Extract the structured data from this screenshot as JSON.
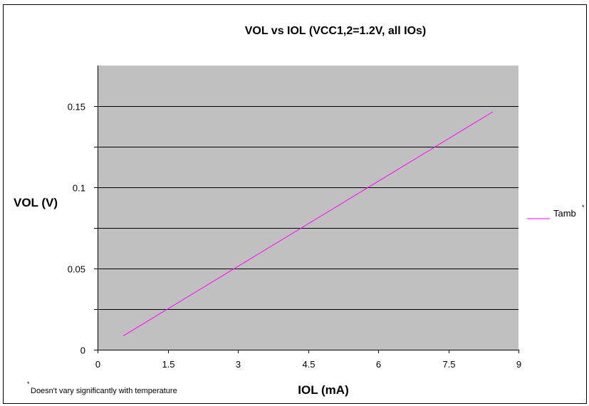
{
  "chart_data": {
    "type": "line",
    "title": "VOL vs  IOL (VCC1,2=1.2V, all IOs)",
    "xlabel": "IOL (mA)",
    "ylabel": "VOL (V)",
    "xlim": [
      0,
      9
    ],
    "ylim": [
      0,
      0.175
    ],
    "xticks": [
      0,
      1.5,
      3,
      4.5,
      6,
      7.5,
      9
    ],
    "xtick_labels": [
      "0",
      "1.5",
      "3",
      "4.5",
      "6",
      "7.5",
      "9"
    ],
    "yticks": [
      0,
      0.025,
      0.05,
      0.075,
      0.1,
      0.125,
      0.15
    ],
    "ytick_labels": [
      "0",
      "",
      "0.05",
      "",
      "0.1",
      "",
      "0.15"
    ],
    "grid": "horizontal",
    "plot_background": "#c0c0c0",
    "legend_position": "right",
    "series": [
      {
        "name": "Tamb",
        "name_superscript": "*",
        "color": "#ff00ff",
        "x": [
          0.55,
          8.45
        ],
        "y": [
          0.0085,
          0.1465
        ]
      }
    ],
    "footnote": {
      "marker": "*",
      "text": "Doesn't vary significantly with temperature"
    }
  }
}
